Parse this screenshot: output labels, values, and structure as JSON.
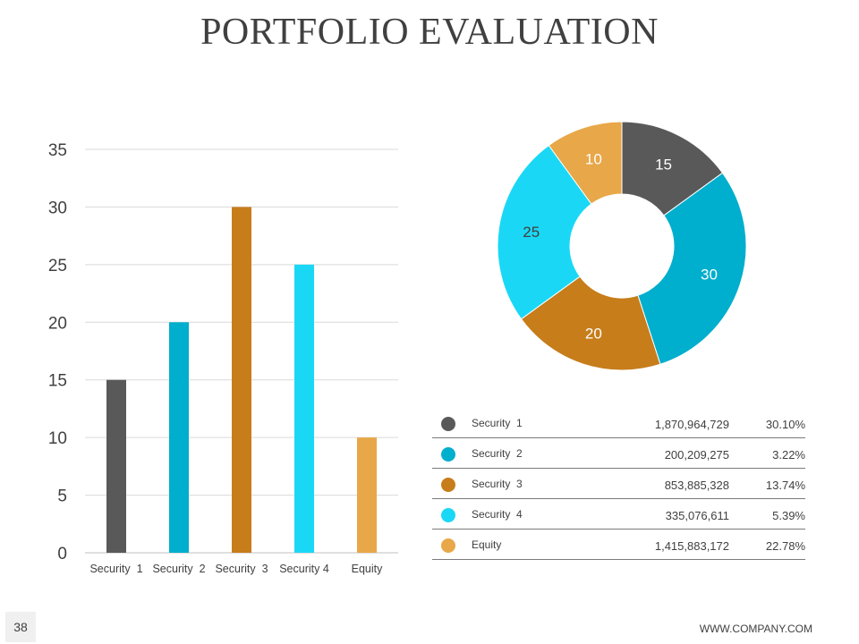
{
  "title": "PORTFOLIO EVALUATION",
  "page_number": "38",
  "footer_url": "WWW.COMPANY.COM",
  "legend_table": [
    {
      "name": "Security  1",
      "value": "1,870,964,729",
      "percent": "30.10%",
      "color": "#595959"
    },
    {
      "name": "Security  2",
      "value": "200,209,275",
      "percent": "3.22%",
      "color": "#00AECD"
    },
    {
      "name": "Security  3",
      "value": "853,885,328",
      "percent": "13.74%",
      "color": "#C77D1A"
    },
    {
      "name": "Security  4",
      "value": "335,076,611",
      "percent": "5.39%",
      "color": "#1AD8F5"
    },
    {
      "name": "Equity",
      "value": "1,415,883,172",
      "percent": "22.78%",
      "color": "#E8A748"
    }
  ],
  "chart_data": [
    {
      "type": "bar",
      "categories": [
        "Security  1",
        "Security  2",
        "Security  3",
        "Security 4",
        "Equity"
      ],
      "values": [
        15,
        20,
        30,
        25,
        10
      ],
      "colors": [
        "#595959",
        "#00AECD",
        "#C77D1A",
        "#1AD8F5",
        "#E8A748"
      ],
      "ylim": [
        0,
        35
      ],
      "yticks": [
        0,
        5,
        10,
        15,
        20,
        25,
        30,
        35
      ],
      "grid": true
    },
    {
      "type": "pie",
      "style": "donut",
      "values": [
        15,
        30,
        20,
        25,
        10
      ],
      "labels": [
        "15",
        "30",
        "20",
        "25",
        "10"
      ],
      "colors": [
        "#595959",
        "#00AECD",
        "#C77D1A",
        "#1AD8F5",
        "#E8A748"
      ],
      "label_colors": [
        "#ffffff",
        "#ffffff",
        "#ffffff",
        "#404040",
        "#ffffff"
      ]
    }
  ]
}
